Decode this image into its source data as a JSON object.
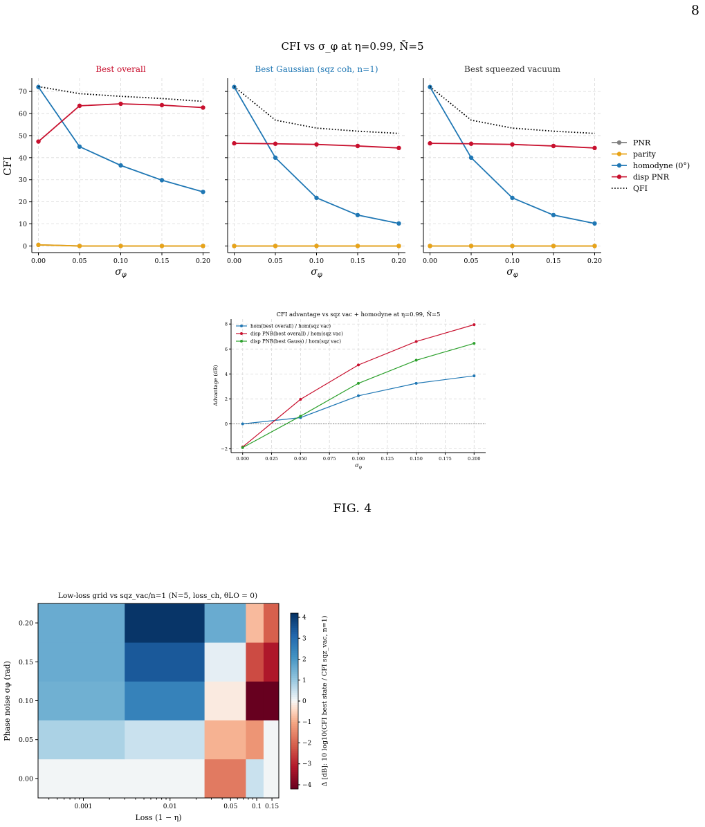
{
  "page_number": "8",
  "figure_caption": "FIG. 4",
  "colors": {
    "PNR": "#7f7f7f",
    "parity": "#e8a317",
    "homodyne": "#1f77b4",
    "disp_pnr": "#c8102e",
    "qfi": "#000000",
    "green": "#2ca02c"
  },
  "chart_data": [
    {
      "type": "line",
      "title": "CFI vs σ_φ at η=0.99, N̄=5",
      "panel_titles": [
        "Best overall",
        "Best Gaussian (sqz coh, n=1)",
        "Best squeezed vacuum"
      ],
      "panel_title_colors": [
        "#c8102e",
        "#1f77b4",
        "#333333"
      ],
      "xlabel": "σφ",
      "ylabel": "CFI",
      "x": [
        0.0,
        0.05,
        0.1,
        0.15,
        0.2
      ],
      "x_tick_labels": [
        "0.00",
        "0.05",
        "0.10",
        "0.15",
        "0.20"
      ],
      "ylim": [
        -3,
        76
      ],
      "y_ticks": [
        0,
        10,
        20,
        30,
        40,
        50,
        60,
        70
      ],
      "grid": true,
      "legend_position": "right",
      "legend": [
        "PNR",
        "parity",
        "homodyne (0°)",
        "disp PNR",
        "QFI"
      ],
      "panels": [
        {
          "series": [
            {
              "name": "PNR",
              "values": [
                0.5,
                0,
                0,
                0,
                0
              ]
            },
            {
              "name": "parity",
              "values": [
                0.5,
                0,
                0,
                0,
                0
              ]
            },
            {
              "name": "homodyne (0°)",
              "values": [
                72,
                45,
                36.5,
                29.8,
                24.5
              ]
            },
            {
              "name": "disp PNR",
              "values": [
                47.3,
                63.5,
                64.4,
                63.8,
                62.7
              ]
            },
            {
              "name": "QFI",
              "values": [
                72.2,
                69,
                67.8,
                66.8,
                65.5
              ]
            }
          ]
        },
        {
          "series": [
            {
              "name": "PNR",
              "values": [
                0,
                0,
                0,
                0,
                0
              ]
            },
            {
              "name": "parity",
              "values": [
                0,
                0,
                0,
                0,
                0
              ]
            },
            {
              "name": "homodyne (0°)",
              "values": [
                72,
                40,
                21.8,
                14,
                10.2
              ]
            },
            {
              "name": "disp PNR",
              "values": [
                46.5,
                46.3,
                46,
                45.3,
                44.4
              ]
            },
            {
              "name": "QFI",
              "values": [
                72.2,
                57,
                53.4,
                52,
                51
              ]
            }
          ]
        },
        {
          "series": [
            {
              "name": "PNR",
              "values": [
                0,
                0,
                0,
                0,
                0
              ]
            },
            {
              "name": "parity",
              "values": [
                0,
                0,
                0,
                0,
                0
              ]
            },
            {
              "name": "homodyne (0°)",
              "values": [
                72,
                40,
                21.8,
                14,
                10.2
              ]
            },
            {
              "name": "disp PNR",
              "values": [
                46.5,
                46.3,
                46,
                45.3,
                44.4
              ]
            },
            {
              "name": "QFI",
              "values": [
                72.2,
                57,
                53.4,
                52,
                51
              ]
            }
          ]
        }
      ]
    },
    {
      "type": "line",
      "title": "CFI advantage vs sqz vac + homodyne at η=0.99, N̄=5",
      "xlabel": "σφ",
      "ylabel": "Advantage (dB)",
      "x": [
        0.0,
        0.05,
        0.1,
        0.15,
        0.2
      ],
      "x_ticks": [
        0,
        0.025,
        0.05,
        0.075,
        0.1,
        0.125,
        0.15,
        0.175,
        0.2
      ],
      "x_tick_labels": [
        "0.000",
        "0.025",
        "0.050",
        "0.075",
        "0.100",
        "0.125",
        "0.150",
        "0.175",
        "0.200"
      ],
      "ylim": [
        -2.3,
        8.4
      ],
      "y_ticks": [
        -2,
        0,
        2,
        4,
        6,
        8
      ],
      "grid": true,
      "legend_position": "top-left",
      "series": [
        {
          "name": "hom(best overall) / hom(sqz vac)",
          "values": [
            0,
            0.5,
            2.25,
            3.25,
            3.85
          ]
        },
        {
          "name": "disp PNR(best overall) / hom(sqz vac)",
          "values": [
            -1.85,
            1.97,
            4.72,
            6.6,
            7.95
          ]
        },
        {
          "name": "disp PNR(best Gauss) / hom(sqz vac)",
          "values": [
            -1.9,
            0.62,
            3.25,
            5.1,
            6.45
          ]
        }
      ]
    },
    {
      "type": "heatmap",
      "title": "Low-loss grid vs sqz_vac/n=1  (N=5, loss_ch, θLO = 0)",
      "xlabel": "Loss (1 − η)",
      "ylabel": "Phase noise σφ (rad)",
      "x_scale": "log",
      "x_edges": [
        0.0003,
        0.003,
        0.025,
        0.075,
        0.12,
        0.18
      ],
      "x_tick_values": [
        0.001,
        0.01,
        0.05,
        0.1,
        0.15
      ],
      "x_tick_labels": [
        "0.001",
        "0.01",
        "0.05",
        "0.1",
        "0.15"
      ],
      "y_edges": [
        -0.025,
        0.025,
        0.075,
        0.125,
        0.175,
        0.225
      ],
      "y_tick_values": [
        0,
        0.05,
        0.1,
        0.15,
        0.2
      ],
      "y_tick_labels": [
        "0.00",
        "0.05",
        "0.10",
        "0.15",
        "0.20"
      ],
      "rows": [
        {
          "y": 0.0,
          "values": [
            0.05,
            0.05,
            -1.7,
            0.5,
            0.05
          ]
        },
        {
          "y": 0.05,
          "values": [
            0.8,
            0.5,
            -0.9,
            -1.3,
            0.05
          ]
        },
        {
          "y": 0.1,
          "values": [
            1.5,
            2.5,
            -0.2,
            -4.2,
            -4.2
          ]
        },
        {
          "y": 0.15,
          "values": [
            1.6,
            3.4,
            0.2,
            -2.4,
            -3.2
          ]
        },
        {
          "y": 0.2,
          "values": [
            1.6,
            4.1,
            1.6,
            -0.8,
            -2.1
          ]
        }
      ],
      "colorbar_label": "Δ [dB]: 10 log10(CFI best state / CFI sqz_vac, n=1)",
      "colorbar_ticks": [
        -4,
        -3,
        -2,
        -1,
        0,
        1,
        2,
        3,
        4
      ],
      "colorbar_tick_labels": [
        "−4",
        "−3",
        "−2",
        "−1",
        "0",
        "1",
        "2",
        "3",
        "4"
      ],
      "vlim": [
        -4.2,
        4.2
      ],
      "colormap": "RdBu"
    }
  ]
}
